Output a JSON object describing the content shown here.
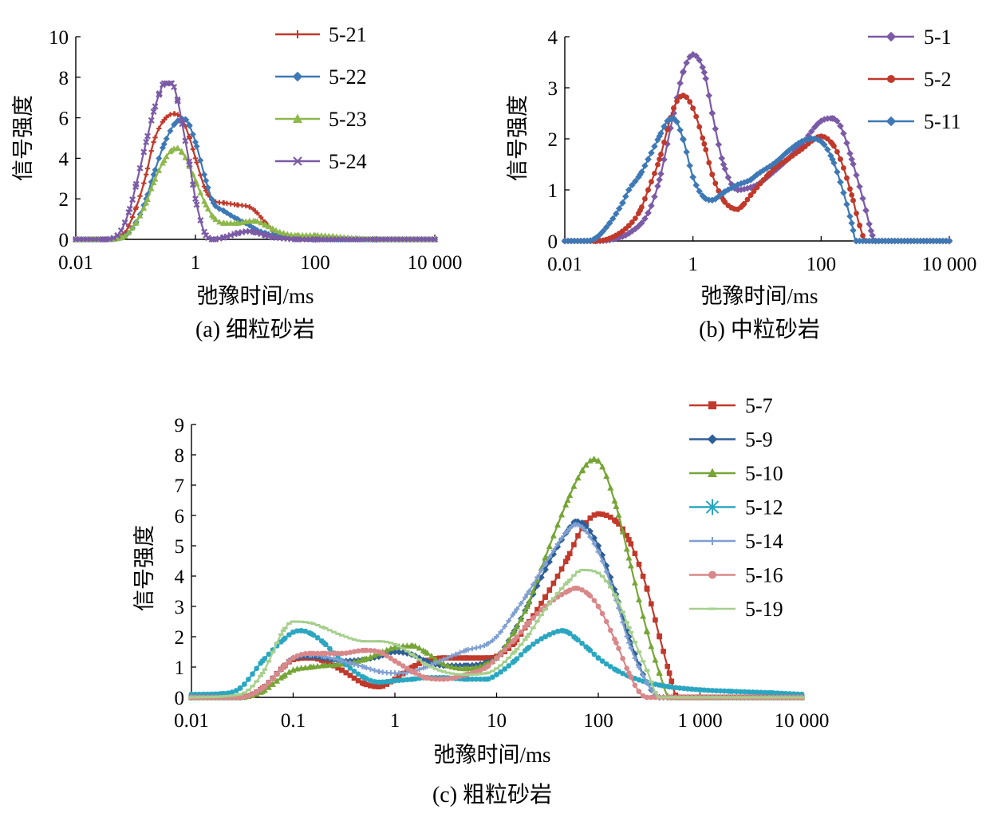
{
  "chart_data": [
    {
      "id": "a",
      "type": "line",
      "caption": "(a) 细粒砂岩",
      "xlabel": "弛豫时间/ms",
      "ylabel": "信号强度",
      "xscale": "log",
      "xlim": [
        0.01,
        10000
      ],
      "ylim": [
        0,
        10
      ],
      "xticks": [
        0.01,
        1,
        100,
        10000
      ],
      "xtick_labels": [
        "0.01",
        "1",
        "100",
        "10 000"
      ],
      "yticks": [
        0,
        2,
        4,
        6,
        8,
        10
      ],
      "ytick_labels": [
        "0",
        "2",
        "4",
        "6",
        "8",
        "10"
      ],
      "legend_position": "top-right",
      "series": [
        {
          "name": "5-21",
          "color": "#c0392b",
          "marker": "plus",
          "x": [
            0.01,
            0.03,
            0.06,
            0.1,
            0.15,
            0.2,
            0.3,
            0.45,
            0.6,
            0.8,
            1,
            1.5,
            2,
            3,
            5,
            8,
            10,
            15,
            20,
            30,
            50,
            100,
            1000,
            10000
          ],
          "y": [
            0,
            0,
            0.2,
            1.5,
            3.2,
            4.8,
            5.9,
            6.2,
            5.9,
            5.0,
            4.0,
            2.4,
            1.9,
            1.8,
            1.7,
            1.6,
            1.4,
            0.8,
            0.4,
            0.2,
            0.05,
            0,
            0,
            0
          ]
        },
        {
          "name": "5-22",
          "color": "#3e79b6",
          "marker": "diamond",
          "x": [
            0.01,
            0.03,
            0.06,
            0.1,
            0.15,
            0.2,
            0.3,
            0.45,
            0.6,
            0.7,
            0.8,
            1,
            1.5,
            2,
            3,
            5,
            8,
            10,
            15,
            20,
            30,
            50,
            100,
            1000,
            10000
          ],
          "y": [
            0,
            0,
            0.1,
            0.8,
            2.0,
            3.2,
            4.7,
            5.7,
            5.95,
            5.9,
            5.6,
            4.8,
            2.9,
            1.8,
            1.4,
            1.0,
            0.7,
            0.5,
            0.3,
            0.2,
            0.2,
            0.1,
            0,
            0,
            0
          ]
        },
        {
          "name": "5-23",
          "color": "#8db84a",
          "marker": "triangle",
          "x": [
            0.01,
            0.03,
            0.06,
            0.1,
            0.15,
            0.2,
            0.3,
            0.4,
            0.5,
            0.6,
            0.8,
            1,
            1.5,
            2,
            3,
            5,
            8,
            10,
            15,
            20,
            30,
            50,
            100,
            200,
            500,
            1000,
            10000
          ],
          "y": [
            0,
            0,
            0.1,
            0.8,
            1.8,
            2.8,
            3.9,
            4.4,
            4.5,
            4.3,
            3.6,
            2.9,
            1.7,
            1.1,
            0.8,
            0.8,
            0.9,
            0.9,
            0.7,
            0.5,
            0.3,
            0.2,
            0.2,
            0.15,
            0.05,
            0,
            0
          ]
        },
        {
          "name": "5-24",
          "color": "#7b5aa6",
          "marker": "cross",
          "x": [
            0.01,
            0.03,
            0.05,
            0.08,
            0.1,
            0.15,
            0.2,
            0.25,
            0.3,
            0.4,
            0.5,
            0.6,
            0.8,
            1,
            1.5,
            2,
            3,
            5,
            8,
            10,
            15,
            20,
            30,
            50,
            100,
            1000,
            10000
          ],
          "y": [
            0,
            0,
            0.2,
            1.5,
            2.6,
            4.8,
            6.3,
            7.2,
            7.7,
            7.7,
            6.9,
            5.7,
            3.7,
            2.0,
            0.2,
            0,
            0.1,
            0.3,
            0.4,
            0.35,
            0.2,
            0.1,
            0.05,
            0,
            0,
            0,
            0
          ]
        }
      ]
    },
    {
      "id": "b",
      "type": "line",
      "caption": "(b) 中粒砂岩",
      "xlabel": "弛豫时间/ms",
      "ylabel": "信号强度",
      "xscale": "log",
      "xlim": [
        0.01,
        10000
      ],
      "ylim": [
        0,
        4
      ],
      "xticks": [
        0.01,
        1,
        100,
        10000
      ],
      "xtick_labels": [
        "0.01",
        "1",
        "100",
        "10 000"
      ],
      "yticks": [
        0,
        1,
        2,
        3,
        4
      ],
      "ytick_labels": [
        "0",
        "1",
        "2",
        "3",
        "4"
      ],
      "legend_position": "top-right",
      "series": [
        {
          "name": "5-1",
          "color": "#7b5aa6",
          "marker": "diamond",
          "x": [
            0.01,
            0.03,
            0.05,
            0.1,
            0.2,
            0.3,
            0.5,
            0.7,
            1,
            1.5,
            2,
            3,
            5,
            8,
            10,
            20,
            30,
            50,
            100,
            150,
            200,
            300,
            500,
            600,
            700,
            1000,
            10000
          ],
          "y": [
            0,
            0,
            0.02,
            0.15,
            0.55,
            1.2,
            2.5,
            3.3,
            3.65,
            3.3,
            2.5,
            1.5,
            1.0,
            1.05,
            1.1,
            1.4,
            1.6,
            1.9,
            2.35,
            2.4,
            2.25,
            1.6,
            0.6,
            0.2,
            0,
            0,
            0
          ]
        },
        {
          "name": "5-2",
          "color": "#c0392b",
          "marker": "circle",
          "x": [
            0.01,
            0.03,
            0.05,
            0.1,
            0.15,
            0.2,
            0.3,
            0.5,
            0.7,
            1,
            1.5,
            2,
            3,
            4,
            5,
            6,
            8,
            10,
            15,
            20,
            30,
            50,
            100,
            150,
            200,
            300,
            400,
            500,
            10000
          ],
          "y": [
            0,
            0,
            0.05,
            0.3,
            0.6,
            1.0,
            1.6,
            2.6,
            2.85,
            2.6,
            1.9,
            1.3,
            0.8,
            0.65,
            0.62,
            0.7,
            0.9,
            1.05,
            1.3,
            1.45,
            1.6,
            1.8,
            2.05,
            1.9,
            1.6,
            0.9,
            0.3,
            0,
            0
          ]
        },
        {
          "name": "5-11",
          "color": "#3e79b6",
          "marker": "diamond",
          "x": [
            0.01,
            0.02,
            0.03,
            0.05,
            0.08,
            0.1,
            0.15,
            0.2,
            0.3,
            0.4,
            0.5,
            0.7,
            1,
            1.5,
            2,
            3,
            5,
            8,
            10,
            20,
            30,
            50,
            70,
            100,
            150,
            200,
            300,
            350,
            10000
          ],
          "y": [
            0,
            0,
            0.05,
            0.35,
            0.75,
            1.0,
            1.3,
            1.6,
            2.05,
            2.35,
            2.4,
            2.0,
            1.25,
            0.85,
            0.8,
            0.95,
            1.1,
            1.2,
            1.3,
            1.55,
            1.75,
            1.95,
            2.0,
            1.95,
            1.6,
            1.15,
            0.35,
            0,
            0
          ]
        }
      ]
    },
    {
      "id": "c",
      "type": "line",
      "caption": "(c) 粗粒砂岩",
      "xlabel": "弛豫时间/ms",
      "ylabel": "信号强度",
      "xscale": "log",
      "xlim": [
        0.01,
        10000
      ],
      "ylim": [
        0,
        9
      ],
      "xticks": [
        0.01,
        0.1,
        1,
        10,
        100,
        1000,
        10000
      ],
      "xtick_labels": [
        "0.01",
        "0.1",
        "1",
        "10",
        "100",
        "1 000",
        "10 000"
      ],
      "yticks": [
        0,
        1,
        2,
        3,
        4,
        5,
        6,
        7,
        8,
        9
      ],
      "ytick_labels": [
        "0",
        "1",
        "2",
        "3",
        "4",
        "5",
        "6",
        "7",
        "8",
        "9"
      ],
      "legend_position": "top-right",
      "series": [
        {
          "name": "5-7",
          "color": "#c0392b",
          "marker": "square",
          "x": [
            0.01,
            0.03,
            0.05,
            0.08,
            0.1,
            0.15,
            0.2,
            0.3,
            0.5,
            0.7,
            1,
            1.5,
            2,
            3,
            5,
            8,
            10,
            15,
            20,
            30,
            50,
            70,
            100,
            150,
            200,
            300,
            400,
            500,
            600,
            1000,
            10000
          ],
          "y": [
            0,
            0,
            0.3,
            1.0,
            1.25,
            1.3,
            1.2,
            0.9,
            0.45,
            0.35,
            0.6,
            1.0,
            1.2,
            1.3,
            1.3,
            1.3,
            1.35,
            1.8,
            2.4,
            3.3,
            4.6,
            5.6,
            6.05,
            5.8,
            5.2,
            3.6,
            2.0,
            0.8,
            0,
            0,
            0
          ]
        },
        {
          "name": "5-9",
          "color": "#2e5f99",
          "marker": "diamond",
          "x": [
            0.01,
            0.03,
            0.05,
            0.08,
            0.1,
            0.15,
            0.2,
            0.3,
            0.5,
            0.7,
            1,
            1.5,
            2,
            3,
            5,
            8,
            10,
            15,
            20,
            30,
            50,
            60,
            70,
            100,
            150,
            200,
            300,
            400,
            10000
          ],
          "y": [
            0,
            0,
            0.3,
            1.0,
            1.3,
            1.35,
            1.3,
            1.2,
            1.25,
            1.35,
            1.5,
            1.4,
            1.2,
            1.05,
            1.05,
            1.15,
            1.3,
            2.2,
            3.0,
            4.2,
            5.5,
            5.8,
            5.75,
            5.0,
            3.4,
            2.0,
            0.5,
            0,
            0
          ]
        },
        {
          "name": "5-10",
          "color": "#76a535",
          "marker": "triangle",
          "x": [
            0.01,
            0.03,
            0.05,
            0.08,
            0.1,
            0.15,
            0.2,
            0.3,
            0.5,
            0.7,
            1,
            1.5,
            2,
            3,
            5,
            8,
            10,
            15,
            20,
            30,
            50,
            70,
            90,
            100,
            150,
            200,
            300,
            400,
            500,
            10000
          ],
          "y": [
            0,
            0,
            0.2,
            0.7,
            0.9,
            1.0,
            1.05,
            1.1,
            1.25,
            1.45,
            1.65,
            1.7,
            1.5,
            1.1,
            0.95,
            1.1,
            1.3,
            2.2,
            3.0,
            4.6,
            6.5,
            7.5,
            7.85,
            7.8,
            6.3,
            4.6,
            2.2,
            0.8,
            0,
            0
          ]
        },
        {
          "name": "5-12",
          "color": "#2aa6c0",
          "marker": "asterisk",
          "x": [
            0.01,
            0.02,
            0.03,
            0.05,
            0.08,
            0.1,
            0.12,
            0.15,
            0.2,
            0.3,
            0.5,
            0.7,
            1,
            1.5,
            2,
            3,
            5,
            8,
            10,
            15,
            20,
            30,
            45,
            50,
            60,
            80,
            100,
            150,
            200,
            300,
            500,
            1000,
            2000,
            5000,
            10000
          ],
          "y": [
            0.1,
            0.12,
            0.3,
            1.2,
            1.9,
            2.15,
            2.2,
            2.1,
            1.8,
            1.2,
            0.65,
            0.5,
            0.55,
            0.6,
            0.65,
            0.65,
            0.6,
            0.6,
            0.75,
            1.2,
            1.6,
            2.0,
            2.2,
            2.15,
            1.95,
            1.6,
            1.3,
            0.9,
            0.7,
            0.5,
            0.35,
            0.25,
            0.2,
            0.15,
            0.1
          ]
        },
        {
          "name": "5-14",
          "color": "#7f9fd0",
          "marker": "plus",
          "x": [
            0.01,
            0.03,
            0.05,
            0.08,
            0.1,
            0.15,
            0.2,
            0.3,
            0.5,
            0.7,
            1,
            1.5,
            2,
            3,
            5,
            8,
            10,
            15,
            20,
            30,
            50,
            60,
            70,
            100,
            150,
            200,
            300,
            400,
            10000
          ],
          "y": [
            0,
            0,
            0.3,
            1.0,
            1.3,
            1.4,
            1.35,
            1.2,
            1.0,
            0.85,
            0.8,
            0.85,
            1.0,
            1.25,
            1.55,
            1.75,
            2.0,
            2.8,
            3.4,
            4.4,
            5.5,
            5.7,
            5.6,
            4.8,
            3.2,
            1.8,
            0.5,
            0,
            0
          ]
        },
        {
          "name": "5-16",
          "color": "#d9888a",
          "marker": "circle",
          "x": [
            0.01,
            0.03,
            0.05,
            0.08,
            0.1,
            0.15,
            0.2,
            0.3,
            0.5,
            0.7,
            1,
            1.5,
            2,
            3,
            5,
            8,
            10,
            15,
            20,
            30,
            50,
            60,
            80,
            100,
            150,
            200,
            250,
            300,
            10000
          ],
          "y": [
            0,
            0,
            0.3,
            1.0,
            1.3,
            1.45,
            1.45,
            1.45,
            1.55,
            1.5,
            1.2,
            0.85,
            0.65,
            0.6,
            0.75,
            1.0,
            1.3,
            1.9,
            2.4,
            3.0,
            3.5,
            3.6,
            3.4,
            3.0,
            1.8,
            0.8,
            0.2,
            0,
            0
          ]
        },
        {
          "name": "5-19",
          "color": "#a6cf8c",
          "marker": "minus",
          "x": [
            0.01,
            0.03,
            0.05,
            0.08,
            0.1,
            0.15,
            0.2,
            0.3,
            0.5,
            0.7,
            1,
            1.5,
            2,
            3,
            5,
            8,
            10,
            15,
            20,
            30,
            50,
            70,
            100,
            150,
            200,
            300,
            400,
            10000
          ],
          "y": [
            0,
            0.1,
            0.8,
            2.2,
            2.5,
            2.45,
            2.3,
            2.05,
            1.85,
            1.85,
            1.75,
            1.4,
            1.1,
            0.85,
            0.75,
            0.8,
            0.95,
            1.5,
            2.0,
            2.9,
            3.8,
            4.2,
            4.1,
            3.3,
            2.3,
            0.9,
            0,
            0
          ]
        }
      ]
    }
  ]
}
